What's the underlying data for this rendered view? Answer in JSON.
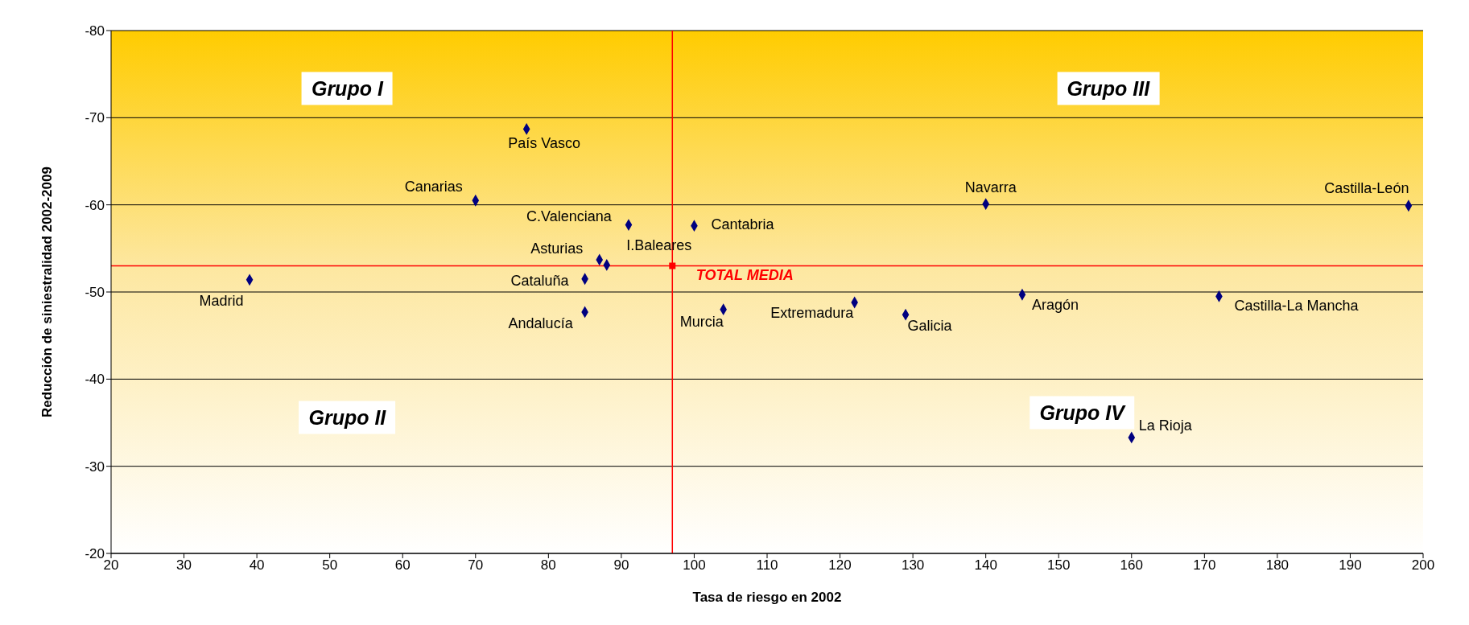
{
  "chart_data": {
    "type": "scatter",
    "xlabel": "Tasa de riesgo en 2002",
    "ylabel": "Reducción de siniestralidad 2002-2009",
    "xlim": [
      20,
      200
    ],
    "ylim": [
      -20,
      -80
    ],
    "xticks": [
      20,
      30,
      40,
      50,
      60,
      70,
      80,
      90,
      100,
      110,
      120,
      130,
      140,
      150,
      160,
      170,
      180,
      190,
      200
    ],
    "yticks": [
      -80,
      -70,
      -60,
      -50,
      -40,
      -30,
      -20
    ],
    "grid": "y",
    "legend": false,
    "marker": "diamond",
    "series": [
      {
        "color": "#000080",
        "x": [
          39,
          77,
          70,
          91,
          100,
          87,
          88,
          85,
          85,
          104,
          122,
          129,
          140,
          145,
          198,
          172,
          160
        ],
        "values": [
          -51.4,
          -68.7,
          -60.5,
          -57.7,
          -57.6,
          -53.7,
          -53.1,
          -51.5,
          -47.7,
          -48,
          -48.8,
          -47.4,
          -60.1,
          -49.7,
          -59.9,
          -49.5,
          -33.3
        ]
      },
      {
        "name": "TOTAL MEDIA",
        "color": "#ff0000",
        "marker": "square",
        "x": [
          97
        ],
        "values": [
          -53
        ]
      }
    ],
    "ref_lines": [
      {
        "axis": "x",
        "value": 97,
        "color": "#ff0000"
      },
      {
        "axis": "y",
        "value": -53,
        "color": "#ff0000"
      }
    ],
    "annotations": [
      "Grupo I",
      "Grupo II",
      "Grupo III",
      "Grupo IV",
      {
        "text": "Madrid",
        "x": 39,
        "y": -51.4
      },
      {
        "text": "País Vasco",
        "x": 77,
        "y": -68.7
      },
      {
        "text": "Canarias",
        "x": 70,
        "y": -60.5
      },
      {
        "text": "C.Valenciana",
        "x": 91,
        "y": -57.7
      },
      {
        "text": "Cantabria",
        "x": 100,
        "y": -57.6
      },
      {
        "text": "Asturias",
        "x": 87,
        "y": -53.7
      },
      {
        "text": "I.Baleares",
        "x": 88,
        "y": -53.1
      },
      {
        "text": "Cataluña",
        "x": 85,
        "y": -51.5
      },
      {
        "text": "Andalucía",
        "x": 85,
        "y": -47.7
      },
      {
        "text": "Murcia",
        "x": 104,
        "y": -48
      },
      {
        "text": "Extremadura",
        "x": 122,
        "y": -48.8
      },
      {
        "text": "Galicia",
        "x": 129,
        "y": -47.4
      },
      {
        "text": "Navarra",
        "x": 140,
        "y": -60.1
      },
      {
        "text": "Aragón",
        "x": 145,
        "y": -49.7
      },
      {
        "text": "Castilla-León",
        "x": 198,
        "y": -59.9
      },
      {
        "text": "Castilla-La Mancha",
        "x": 172,
        "y": -49.5
      },
      {
        "text": "La Rioja",
        "x": 160,
        "y": -33.3
      }
    ]
  }
}
